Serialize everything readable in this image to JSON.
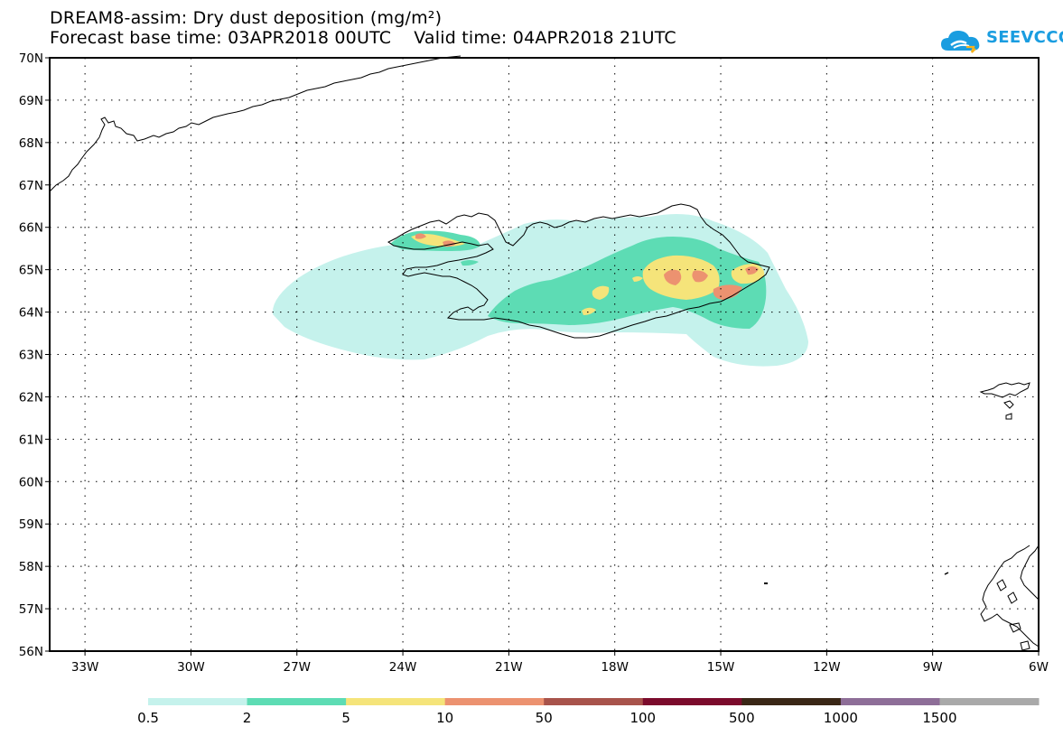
{
  "title": {
    "line1": "DREAM8-assim: Dry dust deposition (mg/m²)",
    "line2_base": "Forecast base time: 03APR2018 00UTC",
    "line2_valid": "Valid time: 04APR2018 21UTC"
  },
  "logo": {
    "text": "SEEVCCC",
    "icon": "cloud-logo-icon",
    "color": "#1a9de0"
  },
  "map": {
    "lat_labels": [
      "70N",
      "69N",
      "68N",
      "67N",
      "66N",
      "65N",
      "64N",
      "63N",
      "62N",
      "61N",
      "60N",
      "59N",
      "58N",
      "57N",
      "56N"
    ],
    "lon_labels": [
      "33W",
      "30W",
      "27W",
      "24W",
      "21W",
      "18W",
      "15W",
      "12W",
      "9W",
      "6W"
    ],
    "lat_range": [
      56,
      70
    ],
    "lon_range": [
      -34,
      -6
    ],
    "grid": "dotted"
  },
  "colorbar": {
    "labels": [
      "0.5",
      "2",
      "5",
      "10",
      "50",
      "100",
      "500",
      "1000",
      "1500"
    ],
    "colors": [
      "#c5f2ec",
      "#5ddcb4",
      "#f5e47a",
      "#ec9270",
      "#a8534b",
      "#7b0b2c",
      "#3a2716",
      "#8e6e98",
      "#a9a9a9"
    ]
  }
}
